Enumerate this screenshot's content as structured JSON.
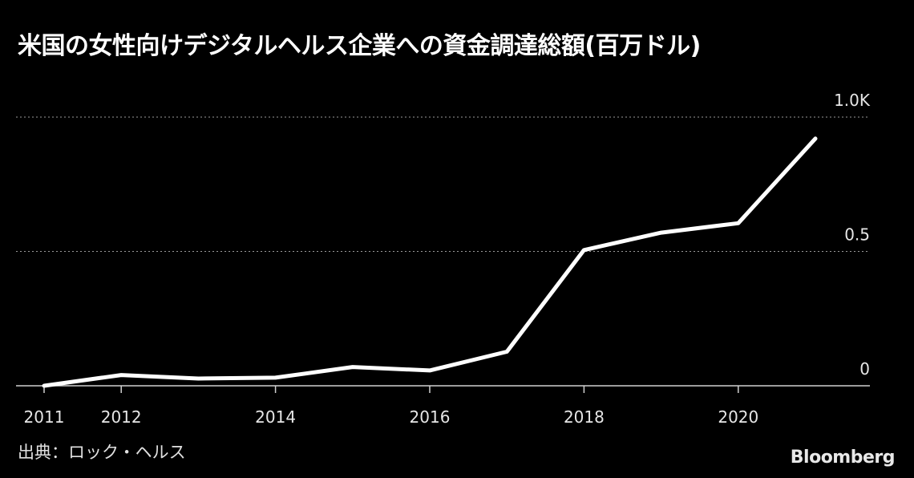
{
  "header": {
    "title": "米国の女性向けデジタルヘルス企業への資金調達総額(百万ドル)"
  },
  "footer": {
    "source": "出典：ロック・ヘルス",
    "brand": "Bloomberg"
  },
  "colors": {
    "background": "#000000",
    "line": "#ffffff",
    "grid": "#9a9a9a",
    "text": "#e6e6e6"
  },
  "chart_data": {
    "type": "line",
    "title": "米国の女性向けデジタルヘルス企業への資金調達総額(百万ドル)",
    "xlabel": "",
    "ylabel": "",
    "x": [
      2011,
      2012,
      2013,
      2014,
      2015,
      2016,
      2017,
      2018,
      2019,
      2020,
      2021
    ],
    "series": [
      {
        "values": [
          0,
          40,
          27,
          30,
          70,
          57,
          127,
          505,
          570,
          605,
          920
        ]
      }
    ],
    "xlim": [
      2011,
      2021.85
    ],
    "ylim": [
      0,
      1000
    ],
    "x_ticks": [
      "2011",
      "2012",
      "2014",
      "2016",
      "2018",
      "2020"
    ],
    "x_tick_values": [
      2011,
      2012,
      2014,
      2016,
      2018,
      2020
    ],
    "y_ticks": [
      "0",
      "0.5",
      "1.0K"
    ],
    "y_tick_values": [
      0,
      500,
      1000
    ],
    "grid": true,
    "y_axis_side": "right"
  }
}
